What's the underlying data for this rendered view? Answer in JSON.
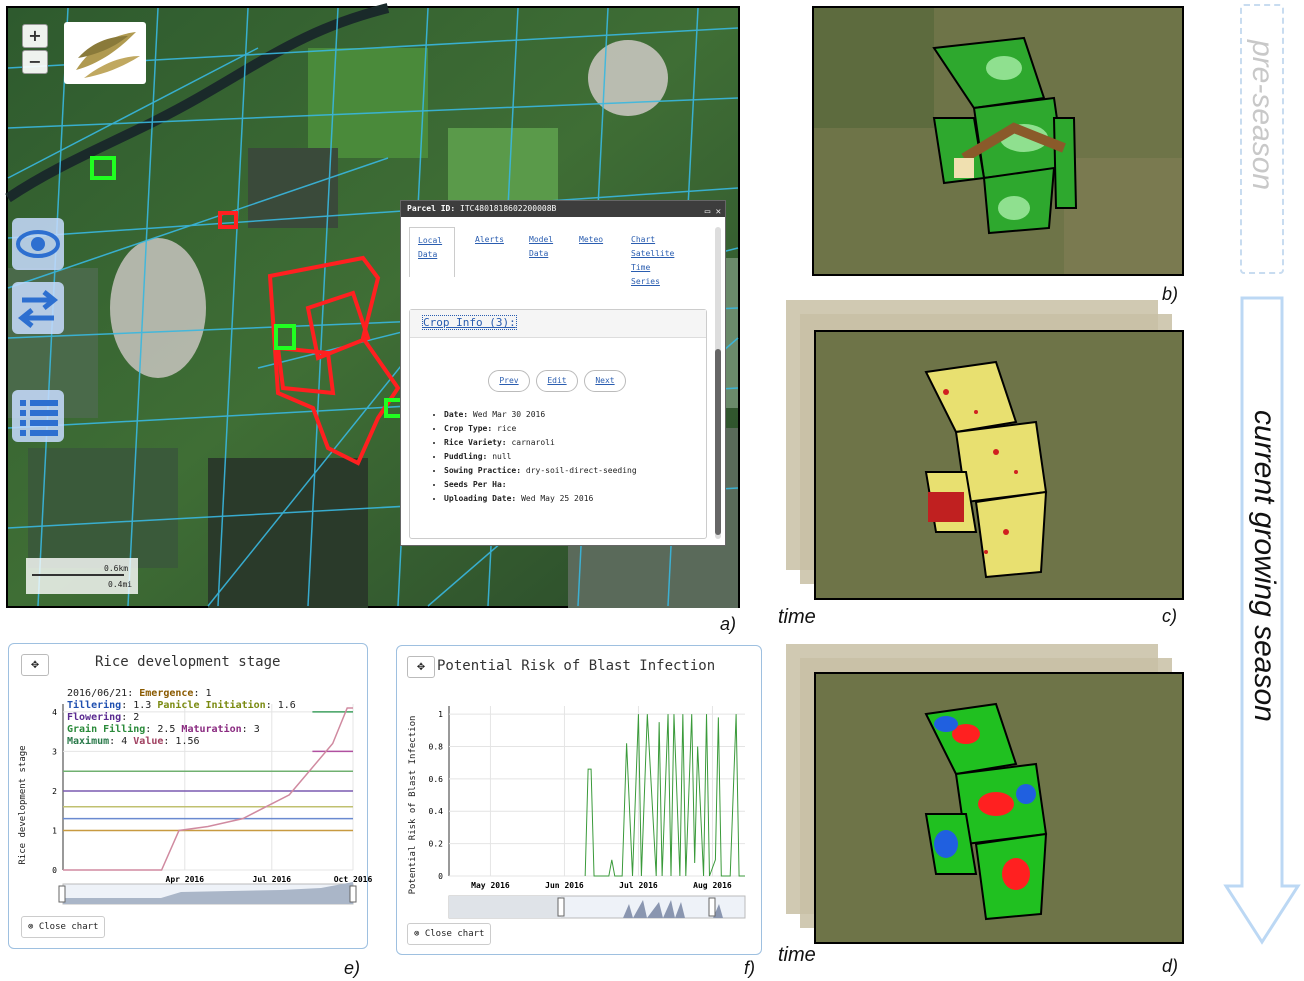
{
  "panel_a": {
    "zoom_in": "+",
    "zoom_out": "−",
    "scale": {
      "km": "0.6km",
      "mi": "0.4mi"
    },
    "popup": {
      "title_label": "Parcel ID:",
      "title_value": "ITC4801818602200008B",
      "tabs": [
        {
          "label": "Local Data"
        },
        {
          "label": "Alerts"
        },
        {
          "label": "Model Data"
        },
        {
          "label": "Meteo"
        },
        {
          "label": "Chart Satellite Time Series"
        }
      ],
      "section": "Crop Info (3):",
      "buttons": {
        "prev": "Prev",
        "edit": "Edit",
        "next": "Next"
      },
      "fields": [
        {
          "k": "Date:",
          "v": "Wed Mar 30 2016"
        },
        {
          "k": "Crop Type:",
          "v": "rice"
        },
        {
          "k": "Rice Variety:",
          "v": "carnaroli"
        },
        {
          "k": "Puddling:",
          "v": "null"
        },
        {
          "k": "Sowing Practice:",
          "v": "dry-soil-direct-seeding"
        },
        {
          "k": "Seeds Per Ha:",
          "v": ""
        },
        {
          "k": "Uploading Date:",
          "v": "Wed May 25 2016"
        }
      ]
    },
    "caption": "a)"
  },
  "panel_b": {
    "caption": "b)"
  },
  "panel_c": {
    "caption": "c)",
    "time": "time"
  },
  "panel_d": {
    "caption": "d)",
    "time": "time"
  },
  "season": {
    "pre": "pre-season",
    "current": "current growing season"
  },
  "panel_e": {
    "caption": "e)",
    "move": "✥",
    "title": "Rice development stage",
    "ylabel": "Rice development stage",
    "close": "Close chart",
    "legend": {
      "date": "2016/06/21:",
      "items": [
        {
          "k": "Emergence",
          "v": "1",
          "color": "#8a5a00"
        },
        {
          "k": "Tillering",
          "v": "1.3",
          "color": "#2050b0"
        },
        {
          "k": "Panicle Initiation",
          "v": "1.6",
          "color": "#7a8a10"
        },
        {
          "k": "Flowering",
          "v": "2",
          "color": "#5a2a90"
        },
        {
          "k": "Grain Filling",
          "v": "2.5",
          "color": "#2a8a3a"
        },
        {
          "k": "Maturation",
          "v": "3",
          "color": "#8a2a80"
        },
        {
          "k": "Maximum",
          "v": "4",
          "color": "#2a7a4a"
        },
        {
          "k": "Value",
          "v": "1.56",
          "color": "#a04060"
        }
      ]
    }
  },
  "panel_f": {
    "caption": "f)",
    "move": "✥",
    "title": "Potential Risk of Blast Infection",
    "ylabel": "Potential Risk of Blast Infection",
    "close": "Close chart"
  },
  "chart_data": [
    {
      "type": "line",
      "title": "Rice development stage",
      "ylabel": "Rice development stage",
      "x_ticks": [
        "Apr 2016",
        "Jul 2016",
        "Oct 2016"
      ],
      "y_ticks": [
        0,
        1,
        2,
        3,
        4
      ],
      "ylim": [
        0,
        4.2
      ],
      "thresholds": [
        {
          "name": "Emergence",
          "value": 1,
          "color": "#c89a40"
        },
        {
          "name": "Tillering",
          "value": 1.3,
          "color": "#6a8ad0"
        },
        {
          "name": "Panicle Initiation",
          "value": 1.6,
          "color": "#c0c070"
        },
        {
          "name": "Flowering",
          "value": 2,
          "color": "#7a5ab0"
        },
        {
          "name": "Grain Filling",
          "value": 2.5,
          "color": "#70b070"
        },
        {
          "name": "Maturation",
          "value": 3,
          "color": "#b050a0"
        },
        {
          "name": "Maximum",
          "value": 4,
          "color": "#40a060"
        }
      ],
      "series": [
        {
          "color": "#d08aa0",
          "x": [
            0,
            0.34,
            0.4,
            0.5,
            0.62,
            0.78,
            0.93,
            0.98,
            1.0
          ],
          "values": [
            0,
            0,
            1.0,
            1.1,
            1.3,
            1.9,
            3.2,
            4.1,
            4.1
          ]
        }
      ]
    },
    {
      "type": "line",
      "title": "Potential Risk of Blast Infection",
      "ylabel": "Potential Risk of Blast Infection",
      "x_ticks": [
        "May 2016",
        "Jun 2016",
        "Jul 2016",
        "Aug 2016"
      ],
      "y_ticks": [
        0,
        0.2,
        0.4,
        0.6,
        0.8,
        1
      ],
      "ylim": [
        0,
        1.05
      ],
      "series": [
        {
          "color": "#3a9a3a",
          "x": [
            0.46,
            0.47,
            0.48,
            0.49,
            0.54,
            0.55,
            0.56,
            0.585,
            0.6,
            0.62,
            0.64,
            0.65,
            0.67,
            0.7,
            0.71,
            0.72,
            0.74,
            0.75,
            0.76,
            0.78,
            0.79,
            0.8,
            0.82,
            0.83,
            0.84,
            0.86,
            0.87,
            0.88,
            0.9,
            0.91,
            0.92,
            0.95,
            0.97,
            0.98,
            1.0
          ],
          "values": [
            0,
            0.66,
            0.66,
            0,
            0,
            0.1,
            0,
            0,
            0.82,
            0,
            1,
            0,
            1,
            0,
            0.95,
            0,
            1,
            0,
            1,
            0,
            1,
            0,
            1,
            0.08,
            0.8,
            0,
            1,
            0,
            0.1,
            0.98,
            0,
            0,
            1,
            0,
            0
          ]
        }
      ]
    }
  ]
}
